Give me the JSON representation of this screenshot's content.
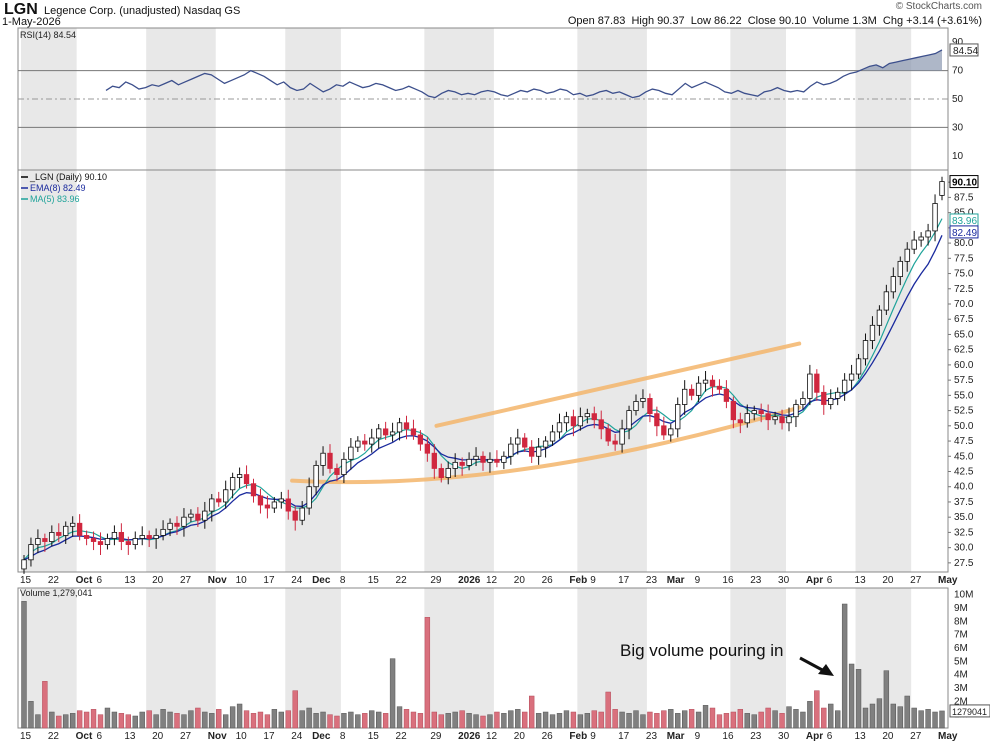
{
  "header": {
    "ticker": "LGN",
    "company": "Legence Corp. (unadjusted) Nasdaq GS",
    "date": "1-May-2026",
    "open_label": "Open",
    "open": "87.83",
    "high_label": "High",
    "high": "90.37",
    "low_label": "Low",
    "low": "86.22",
    "close_label": "Close",
    "close": "90.10",
    "volume_label": "Volume",
    "volume": "1.3M",
    "chg_label": "Chg",
    "chg": "+3.14 (+3.61%)",
    "brand": "© StockCharts.com"
  },
  "colors": {
    "up": "#ffffff",
    "up_stroke": "#111111",
    "down": "#d0273f",
    "ema": "#1a2a9e",
    "ma": "#1fa39a",
    "rsi_line": "#3c4f8c",
    "channel": "#f3b56b",
    "vol_up": "#808080",
    "vol_down": "#d9707d",
    "shade": "#e8e8e8"
  },
  "annotation": {
    "text": "Big volume pouring in",
    "arrow": "arrow-down-right"
  },
  "chart_data": [
    {
      "type": "line",
      "panel": "rsi",
      "legend": "RSI(14) 84.54",
      "last_label": "84.54",
      "ylim": [
        0,
        100
      ],
      "ticks": [
        90,
        70,
        50,
        30,
        10
      ],
      "reference_lines": [
        70,
        50,
        30
      ],
      "values": [
        56,
        59,
        58,
        62,
        60,
        57,
        58,
        60,
        59,
        61,
        63,
        60,
        62,
        64,
        66,
        68,
        67,
        64,
        61,
        63,
        65,
        67,
        70,
        68,
        66,
        63,
        60,
        62,
        58,
        56,
        57,
        61,
        58,
        55,
        57,
        60,
        59,
        62,
        60,
        58,
        59,
        61,
        60,
        58,
        56,
        57,
        59,
        57,
        55,
        52,
        51,
        54,
        56,
        55,
        53,
        54,
        53,
        55,
        56,
        55,
        53,
        52,
        54,
        56,
        55,
        57,
        56,
        54,
        55,
        57,
        56,
        53,
        54,
        52,
        53,
        55,
        56,
        54,
        55,
        53,
        51,
        52,
        55,
        57,
        56,
        54,
        53,
        57,
        61,
        58,
        60,
        62,
        60,
        58,
        55,
        54,
        56,
        54,
        53,
        52,
        55,
        56,
        58,
        56,
        55,
        56,
        55,
        59,
        62,
        60,
        61,
        63,
        66,
        68,
        69,
        71,
        73,
        74,
        72,
        75,
        76,
        77,
        78,
        79,
        80,
        81,
        82,
        84.54
      ],
      "x_ticks": [
        "15",
        "22",
        "Oct",
        "6",
        "13",
        "20",
        "27",
        "Nov",
        "10",
        "17",
        "24",
        "Dec",
        "8",
        "15",
        "22",
        "29",
        "2026",
        "12",
        "20",
        "26",
        "Feb",
        "9",
        "17",
        "23",
        "Mar",
        "9",
        "16",
        "23",
        "30",
        "Apr",
        "6",
        "13",
        "20",
        "27",
        "May"
      ]
    },
    {
      "type": "candlestick",
      "panel": "price",
      "legend": [
        "_LGN (Daily) 90.10",
        "EMA(8) 82.49",
        "MA(5) 83.96"
      ],
      "last_labels": [
        "90.10",
        "83.96",
        "82.49"
      ],
      "ylim": [
        26,
        92
      ],
      "ticks": [
        27.5,
        30.0,
        32.5,
        35.0,
        37.5,
        40.0,
        42.5,
        45.0,
        47.5,
        50.0,
        52.5,
        55.0,
        57.5,
        60.0,
        62.5,
        65.0,
        67.5,
        70.0,
        72.5,
        75.0,
        77.5,
        80.0,
        82.5,
        85.0,
        87.5,
        90.0
      ],
      "close": [
        28.0,
        30.5,
        31.5,
        31.0,
        32.5,
        32.0,
        33.5,
        34.0,
        32.0,
        31.5,
        31.0,
        30.5,
        31.5,
        32.5,
        31.0,
        30.5,
        31.5,
        32.0,
        31.5,
        32.0,
        33.0,
        34.0,
        33.5,
        35.0,
        35.5,
        34.5,
        36.0,
        38.0,
        37.5,
        39.5,
        41.5,
        42.0,
        40.5,
        38.5,
        37.0,
        36.5,
        37.5,
        38.0,
        36.0,
        34.5,
        36.5,
        40.0,
        43.5,
        45.5,
        43.0,
        42.0,
        44.5,
        46.5,
        47.5,
        47.0,
        48.0,
        49.5,
        48.5,
        49.0,
        50.5,
        49.5,
        48.5,
        47.0,
        45.5,
        43.0,
        41.5,
        43.0,
        44.0,
        43.5,
        44.5,
        45.0,
        44.0,
        44.5,
        44.0,
        45.0,
        47.0,
        48.0,
        46.5,
        45.0,
        46.5,
        47.5,
        49.0,
        50.5,
        51.5,
        50.0,
        51.5,
        52.0,
        51.0,
        49.5,
        47.5,
        47.0,
        49.5,
        52.5,
        54.0,
        54.5,
        52.0,
        50.0,
        48.5,
        49.5,
        53.5,
        56.0,
        55.0,
        57.0,
        57.5,
        56.5,
        56.0,
        54.0,
        51.0,
        50.5,
        52.0,
        52.5,
        52.0,
        51.0,
        51.5,
        50.5,
        51.5,
        53.5,
        54.5,
        58.5,
        55.5,
        53.5,
        54.5,
        55.5,
        57.5,
        58.5,
        61.0,
        64.0,
        66.5,
        69.0,
        72.0,
        74.5,
        77.0,
        79.0,
        80.5,
        81.0,
        82.0,
        86.5,
        90.1
      ],
      "open": [
        26.5,
        28.0,
        30.5,
        31.5,
        31.0,
        32.5,
        32.0,
        33.5,
        34.0,
        32.0,
        31.5,
        31.0,
        30.5,
        31.5,
        32.5,
        31.0,
        30.5,
        31.5,
        32.0,
        31.5,
        32.0,
        33.0,
        34.0,
        33.5,
        35.0,
        35.5,
        34.5,
        36.0,
        38.0,
        37.5,
        39.5,
        41.5,
        42.0,
        40.5,
        38.5,
        37.0,
        36.5,
        37.5,
        38.0,
        36.0,
        34.5,
        36.5,
        40.0,
        43.5,
        45.5,
        43.0,
        42.0,
        44.5,
        46.5,
        47.5,
        47.0,
        48.0,
        49.5,
        48.5,
        49.0,
        50.5,
        49.5,
        48.5,
        47.0,
        45.5,
        43.0,
        41.5,
        43.0,
        44.0,
        43.5,
        44.5,
        45.0,
        44.0,
        44.5,
        44.0,
        45.0,
        47.0,
        48.0,
        46.5,
        45.0,
        46.5,
        47.5,
        49.0,
        50.5,
        51.5,
        50.0,
        51.5,
        52.0,
        51.0,
        49.5,
        47.5,
        47.0,
        49.5,
        52.5,
        54.0,
        54.5,
        52.0,
        50.0,
        48.5,
        49.5,
        53.5,
        56.0,
        55.0,
        57.0,
        57.5,
        56.5,
        56.0,
        54.0,
        51.0,
        50.5,
        52.0,
        52.5,
        52.0,
        51.0,
        51.5,
        50.5,
        51.5,
        53.5,
        54.5,
        58.5,
        55.5,
        53.5,
        54.5,
        55.5,
        57.5,
        58.5,
        61.0,
        64.0,
        66.5,
        69.0,
        72.0,
        74.5,
        77.0,
        79.0,
        80.5,
        81.0,
        82.0,
        87.83
      ],
      "series": [
        {
          "name": "EMA(8)",
          "last": 82.49
        },
        {
          "name": "MA(5)",
          "last": 83.96
        }
      ],
      "channel": {
        "upper": [
          [
            0.45,
            50.0
          ],
          [
            0.84,
            63.5
          ]
        ],
        "lower": [
          [
            0.37,
            45.5
          ],
          [
            0.84,
            53.0
          ]
        ],
        "shape": "widening rounded channel"
      }
    },
    {
      "type": "bar",
      "panel": "volume",
      "legend": "Volume 1,279,041",
      "last_label": "1279041",
      "ylim": [
        0,
        10.5
      ],
      "unit": "M",
      "ticks": [
        "10M",
        "9M",
        "8M",
        "7M",
        "6M",
        "5M",
        "4M",
        "3M",
        "2M",
        "1M"
      ],
      "values": [
        9.5,
        2.0,
        1.0,
        3.5,
        1.2,
        0.9,
        1.0,
        1.1,
        1.3,
        1.2,
        1.4,
        1.0,
        1.5,
        1.2,
        1.1,
        1.0,
        0.9,
        1.2,
        1.3,
        1.0,
        1.4,
        1.2,
        1.1,
        1.0,
        1.3,
        1.5,
        1.2,
        1.1,
        1.4,
        1.0,
        1.6,
        1.8,
        1.3,
        1.1,
        1.2,
        1.0,
        1.4,
        1.2,
        1.3,
        2.8,
        1.3,
        1.5,
        1.1,
        1.2,
        1.0,
        0.9,
        1.1,
        1.2,
        1.0,
        1.1,
        1.3,
        1.2,
        1.1,
        5.2,
        1.6,
        1.4,
        1.2,
        1.1,
        8.3,
        1.2,
        1.0,
        1.1,
        1.2,
        1.3,
        1.1,
        1.0,
        0.9,
        1.0,
        1.2,
        1.1,
        1.3,
        1.4,
        1.2,
        2.4,
        1.1,
        1.2,
        1.0,
        1.1,
        1.3,
        1.2,
        1.0,
        1.1,
        1.3,
        1.2,
        2.7,
        1.4,
        1.2,
        1.1,
        1.3,
        1.0,
        1.2,
        1.1,
        1.3,
        1.4,
        1.1,
        1.3,
        1.4,
        1.2,
        1.7,
        1.5,
        1.0,
        1.1,
        1.2,
        1.4,
        1.1,
        1.0,
        1.2,
        1.5,
        1.3,
        1.1,
        1.6,
        1.4,
        1.2,
        2.0,
        2.8,
        1.5,
        1.8,
        1.3,
        9.3,
        4.8,
        4.4,
        1.5,
        1.8,
        2.2,
        4.3,
        1.8,
        1.6,
        2.4,
        1.5,
        1.3,
        1.4,
        1.2,
        1.28
      ],
      "x_ticks": [
        "15",
        "22",
        "Oct",
        "6",
        "13",
        "20",
        "27",
        "Nov",
        "10",
        "17",
        "24",
        "Dec",
        "8",
        "15",
        "22",
        "29",
        "2026",
        "12",
        "20",
        "26",
        "Feb",
        "9",
        "17",
        "23",
        "Mar",
        "9",
        "16",
        "23",
        "30",
        "Apr",
        "6",
        "13",
        "20",
        "27",
        "May"
      ]
    }
  ]
}
